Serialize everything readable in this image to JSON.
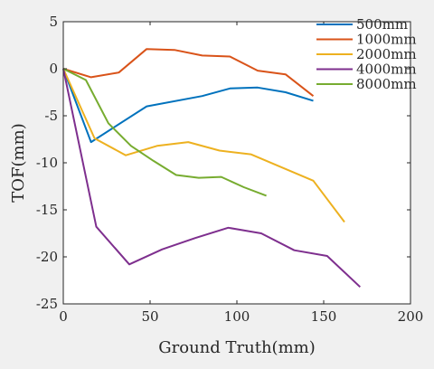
{
  "chart_data": {
    "type": "line",
    "title": "",
    "xlabel": "Ground Truth(mm)",
    "ylabel": "TOF(mm)",
    "xlim": [
      0,
      200
    ],
    "ylim": [
      -25,
      5
    ],
    "xticks": [
      0,
      50,
      100,
      150,
      200
    ],
    "yticks": [
      5,
      0,
      -5,
      -10,
      -15,
      -20,
      -25
    ],
    "grid": false,
    "legend_position": "top-right",
    "series": [
      {
        "name": "500mm",
        "color": "#0072BD",
        "x": [
          0,
          16,
          48,
          80,
          96,
          112,
          128,
          144
        ],
        "y": [
          0,
          -7.8,
          -4,
          -2.9,
          -2.1,
          -2.0,
          -2.5,
          -3.4
        ]
      },
      {
        "name": "1000mm",
        "color": "#D95319",
        "x": [
          0,
          16,
          32,
          48,
          64,
          80,
          96,
          112,
          128,
          144
        ],
        "y": [
          0,
          -0.9,
          -0.4,
          2.1,
          2.0,
          1.4,
          1.3,
          -0.2,
          -0.6,
          -2.9
        ]
      },
      {
        "name": "2000mm",
        "color": "#EDB120",
        "x": [
          0,
          18,
          36,
          54,
          72,
          90,
          108,
          126,
          144,
          162
        ],
        "y": [
          0,
          -7.4,
          -9.2,
          -8.2,
          -7.8,
          -8.7,
          -9.1,
          -10.5,
          -11.9,
          -16.3
        ]
      },
      {
        "name": "4000mm",
        "color": "#7E2F8E",
        "x": [
          0,
          19,
          38,
          57,
          76,
          95,
          114,
          133,
          152,
          171
        ],
        "y": [
          0,
          -16.8,
          -20.8,
          -19.2,
          -18.0,
          -16.9,
          -17.5,
          -19.3,
          -19.9,
          -23.2
        ]
      },
      {
        "name": "8000mm",
        "color": "#77AC30",
        "x": [
          0,
          13,
          26,
          39,
          52,
          65,
          78,
          91,
          104,
          117
        ],
        "y": [
          0,
          -1.2,
          -5.8,
          -8.2,
          -9.8,
          -11.3,
          -11.6,
          -11.5,
          -12.6,
          -13.5
        ]
      }
    ]
  }
}
